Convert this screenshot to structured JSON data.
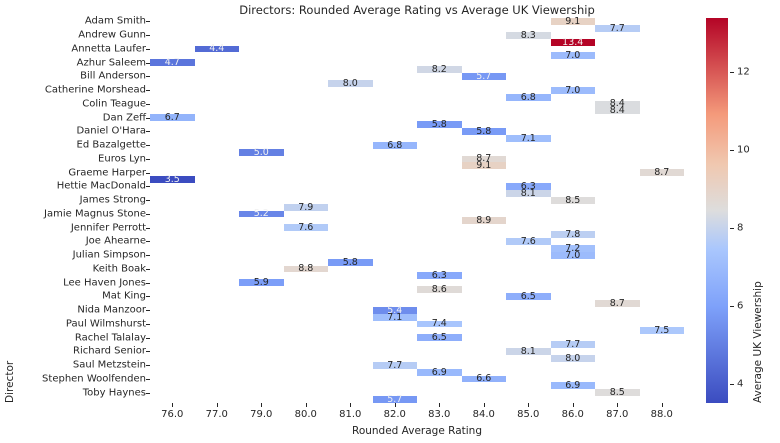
{
  "chart_data": {
    "type": "heatmap",
    "title": "Directors: Rounded Average Rating vs Average UK Viewership",
    "xlabel": "Rounded Average Rating",
    "ylabel": "Director",
    "colorbar_label": "Average UK Viewership",
    "x_categories": [
      "76.0",
      "77.0",
      "79.0",
      "80.0",
      "81.0",
      "82.0",
      "83.0",
      "84.0",
      "85.0",
      "86.0",
      "87.0",
      "88.0"
    ],
    "visible_y_labels": [
      "Adam Smith",
      "Andrew Gunn",
      "Annetta Laufer",
      "Azhur Saleem",
      "Bill Anderson",
      "Catherine Morshead",
      "Colin Teague",
      "Dan Zeff",
      "Daniel O'Hara",
      "Ed Bazalgette",
      "Euros Lyn",
      "Graeme Harper",
      "Hettie MacDonald",
      "James Strong",
      "Jamie Magnus Stone",
      "Jennifer Perrott",
      "Joe Ahearne",
      "Julian Simpson",
      "Keith Boak",
      "Lee Haven Jones",
      "Mat King",
      "Nida Manzoor",
      "Paul Wilmshurst",
      "Rachel Talalay",
      "Richard Senior",
      "Saul Metzstein",
      "Stephen Woolfenden",
      "Toby Haynes"
    ],
    "n_rows": 56,
    "label_row_step": 2,
    "grid": false,
    "legend_position": "colorbar-right",
    "vmin": 3.5,
    "vmax": 13.4,
    "colorbar_ticks": [
      "12",
      "10",
      "8",
      "6",
      "4"
    ],
    "colorbar_tick_values": [
      12,
      10,
      8,
      6,
      4
    ],
    "colormap": "coolwarm",
    "colormap_stops": [
      [
        0,
        "#3b4cc0"
      ],
      [
        0.25,
        "#7ea1fa"
      ],
      [
        0.4,
        "#aac7fd"
      ],
      [
        0.5,
        "#dddddd"
      ],
      [
        0.62,
        "#f0c8b0"
      ],
      [
        0.75,
        "#f49a7b"
      ],
      [
        1,
        "#b40426"
      ]
    ],
    "annotation_white_text_below": 5.75,
    "annotation_white_text_above": 12.5,
    "cells": [
      {
        "row": 0,
        "x": "86.0",
        "v": 9.1
      },
      {
        "row": 1,
        "x": "87.0",
        "v": 7.7
      },
      {
        "row": 2,
        "x": "85.0",
        "v": 8.3
      },
      {
        "row": 3,
        "x": "86.0",
        "v": 13.4
      },
      {
        "row": 4,
        "x": "77.0",
        "v": 4.4
      },
      {
        "row": 5,
        "x": "86.0",
        "v": 7.0
      },
      {
        "row": 6,
        "x": "76.0",
        "v": 4.7
      },
      {
        "row": 7,
        "x": "83.0",
        "v": 8.2
      },
      {
        "row": 8,
        "x": "84.0",
        "v": 5.7
      },
      {
        "row": 9,
        "x": "81.0",
        "v": 8.0
      },
      {
        "row": 10,
        "x": "86.0",
        "v": 7.0
      },
      {
        "row": 11,
        "x": "85.0",
        "v": 6.8
      },
      {
        "row": 12,
        "x": "87.0",
        "v": 8.4
      },
      {
        "row": 13,
        "x": "87.0",
        "v": 8.4
      },
      {
        "row": 14,
        "x": "76.0",
        "v": 6.7
      },
      {
        "row": 15,
        "x": "83.0",
        "v": 5.8
      },
      {
        "row": 16,
        "x": "84.0",
        "v": 5.8
      },
      {
        "row": 17,
        "x": "85.0",
        "v": 7.1
      },
      {
        "row": 18,
        "x": "82.0",
        "v": 6.8
      },
      {
        "row": 19,
        "x": "79.0",
        "v": 5.0
      },
      {
        "row": 20,
        "x": "84.0",
        "v": 8.7
      },
      {
        "row": 21,
        "x": "84.0",
        "v": 9.1
      },
      {
        "row": 22,
        "x": "88.0",
        "v": 8.7
      },
      {
        "row": 23,
        "x": "76.0",
        "v": 3.5
      },
      {
        "row": 24,
        "x": "85.0",
        "v": 6.3
      },
      {
        "row": 25,
        "x": "85.0",
        "v": 8.1
      },
      {
        "row": 26,
        "x": "86.0",
        "v": 8.5
      },
      {
        "row": 27,
        "x": "80.0",
        "v": 7.9
      },
      {
        "row": 28,
        "x": "79.0",
        "v": 5.2
      },
      {
        "row": 29,
        "x": "84.0",
        "v": 8.9
      },
      {
        "row": 30,
        "x": "80.0",
        "v": 7.6
      },
      {
        "row": 31,
        "x": "86.0",
        "v": 7.8
      },
      {
        "row": 32,
        "x": "85.0",
        "v": 7.6
      },
      {
        "row": 33,
        "x": "86.0",
        "v": 7.2
      },
      {
        "row": 34,
        "x": "86.0",
        "v": 7.0
      },
      {
        "row": 35,
        "x": "81.0",
        "v": 5.8
      },
      {
        "row": 36,
        "x": "80.0",
        "v": 8.8
      },
      {
        "row": 37,
        "x": "83.0",
        "v": 6.3
      },
      {
        "row": 38,
        "x": "79.0",
        "v": 5.9
      },
      {
        "row": 39,
        "x": "83.0",
        "v": 8.6
      },
      {
        "row": 40,
        "x": "85.0",
        "v": 6.5
      },
      {
        "row": 41,
        "x": "87.0",
        "v": 8.7
      },
      {
        "row": 42,
        "x": "82.0",
        "v": 5.4
      },
      {
        "row": 43,
        "x": "82.0",
        "v": 7.1
      },
      {
        "row": 44,
        "x": "83.0",
        "v": 7.4
      },
      {
        "row": 45,
        "x": "88.0",
        "v": 7.5
      },
      {
        "row": 46,
        "x": "83.0",
        "v": 6.5
      },
      {
        "row": 47,
        "x": "86.0",
        "v": 7.7
      },
      {
        "row": 48,
        "x": "85.0",
        "v": 8.1
      },
      {
        "row": 49,
        "x": "86.0",
        "v": 8.0
      },
      {
        "row": 50,
        "x": "82.0",
        "v": 7.7
      },
      {
        "row": 51,
        "x": "83.0",
        "v": 6.9
      },
      {
        "row": 52,
        "x": "84.0",
        "v": 6.6
      },
      {
        "row": 53,
        "x": "86.0",
        "v": 6.9
      },
      {
        "row": 54,
        "x": "87.0",
        "v": 8.5
      },
      {
        "row": 55,
        "x": "82.0",
        "v": 5.7
      }
    ]
  }
}
